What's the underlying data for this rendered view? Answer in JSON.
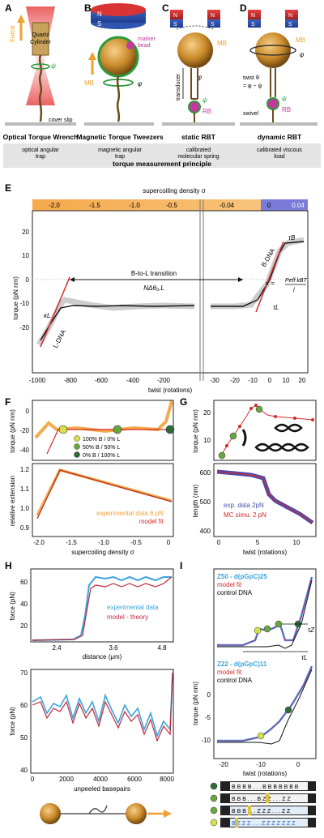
{
  "panelA": {
    "letter": "A",
    "force": "Force",
    "cylinder_line1": "Quartz",
    "cylinder_line2": "Cylinder",
    "psi": "ψ",
    "cover": "cover slip",
    "title": "Optical Torque Wrench",
    "sub1": "optical angular",
    "sub2": "trap"
  },
  "panelB": {
    "letter": "B",
    "n": "N",
    "s": "S",
    "marker1": "marker",
    "marker2": "bead",
    "mb": "MB",
    "phi": "φ",
    "title": "Magnetic Torque Tweezers",
    "sub1": "magnetic angular",
    "sub2": "trap"
  },
  "panelC": {
    "letter": "C",
    "n": "N",
    "s": "S",
    "mb": "MB",
    "phi": "φ",
    "transducer": "transducer",
    "psi": "ψ",
    "rb": "RB",
    "title": "static RBT",
    "sub1": "calibrated",
    "sub2": "molecular spring"
  },
  "panelD": {
    "letter": "D",
    "n": "N",
    "s": "S",
    "mb": "MB",
    "phi": "φ",
    "twist1": "twist θ",
    "twist2": "= φ − ψ",
    "psi": "ψ",
    "swivel": "swivel",
    "rb": "RB",
    "title": "dynamic RBT",
    "sub1": "calibrated viscous",
    "sub2": "load"
  },
  "principle": "torque measurement principle",
  "panelE": {
    "letter": "E",
    "axis_top": "supercoiling density σ",
    "top_ticks": [
      "-2.0",
      "-1.5",
      "-1.0",
      "-0.5",
      "-0.04",
      "0",
      "0.04"
    ],
    "ylabel": "torque (pN nm)",
    "yticks": [
      "20",
      "10",
      "0",
      "-10",
      "-20"
    ],
    "xlabel": "twist (rotations)",
    "xticks": [
      "-1000",
      "-800",
      "-600",
      "-400",
      "-200",
      "-30",
      "-20",
      "-10",
      "0",
      "10",
      "20"
    ],
    "transition": "B-to-L transition",
    "ndelta": "NΔθ₀,L",
    "tauB": "τB",
    "tauL": "τL",
    "bdna": "B-DNA",
    "ldna": "L-DNA",
    "kappaL": "κL",
    "kappa": "κ =",
    "kfrac_num": "Peff kBT",
    "kfrac_den": "l"
  },
  "panelF": {
    "letter": "F",
    "ylabel1": "torque (pN nm)",
    "yticks1": [
      "0",
      "-20",
      "-40"
    ],
    "legend": [
      "100% B /   0% L",
      "50% B /  50% L",
      "0% B / 100% L"
    ],
    "ylabel2": "relative extension",
    "yticks2": [
      "1.2",
      "1.1",
      "1.0",
      "0.9"
    ],
    "xticks": [
      "-2.0",
      "-1.5",
      "-1.0",
      "-0.5",
      "0"
    ],
    "xlabel": "supercoiling density σ",
    "exp": "experimental data 6 pN",
    "model": "model fit"
  },
  "panelG": {
    "letter": "G",
    "ylabel1": "torque (pN nm)",
    "yticks1": [
      "20",
      "10"
    ],
    "ylabel2": "length (nm)",
    "yticks2": [
      "600",
      "500",
      "400"
    ],
    "xticks": [
      "0",
      "5",
      "10"
    ],
    "xlabel": "twist (rotations)",
    "exp": "exp. data 2pN",
    "mc": "MC simu. 2 pN"
  },
  "panelH": {
    "letter": "H",
    "ylabel1": "force (pN)",
    "yticks1": [
      "60",
      "40",
      "20"
    ],
    "xticks1": [
      "2.4",
      "3.6",
      "4.8"
    ],
    "xlabel1": "distance (μm)",
    "exp": "experimental data",
    "model": "model - theory",
    "ylabel2": "force (pN)",
    "yticks2": [
      "70",
      "60",
      "50",
      "40"
    ],
    "xticks2": [
      "0",
      "2000",
      "4000",
      "6000",
      "8000"
    ],
    "xlabel2": "unpeeled basepairs"
  },
  "panelI": {
    "letter": "I",
    "z50": "Z50 - d(pGpC)25",
    "z22": "Z22 - d(pGpC)11",
    "model": "model fit",
    "control": "control DNA",
    "ylabel": "torque (pN nm)",
    "yticks": [
      "0",
      "-5",
      "-10"
    ],
    "xticks": [
      "-20",
      "-10",
      "0"
    ],
    "xlabel": "twist (rotations)",
    "tauZ": "τZ",
    "tauL": "τL",
    "seq_rows": [
      "B B B B . . . B B B B B B B",
      "B B B . . . B Z Z . . . Z Z",
      "B B B . . . Z Z Z . . . Z Z",
      "B Z Z Z . . . Z Z Z Z Z Z Z"
    ]
  },
  "colors": {
    "orange": "#f5a94b",
    "blue": "#4a74c9",
    "red": "#d42a2a",
    "gray": "#c8c8c8",
    "cyan": "#3ba3dc",
    "green_light": "#d7e04a",
    "green_mid": "#6aa640",
    "green_dark": "#2f6b3a"
  }
}
